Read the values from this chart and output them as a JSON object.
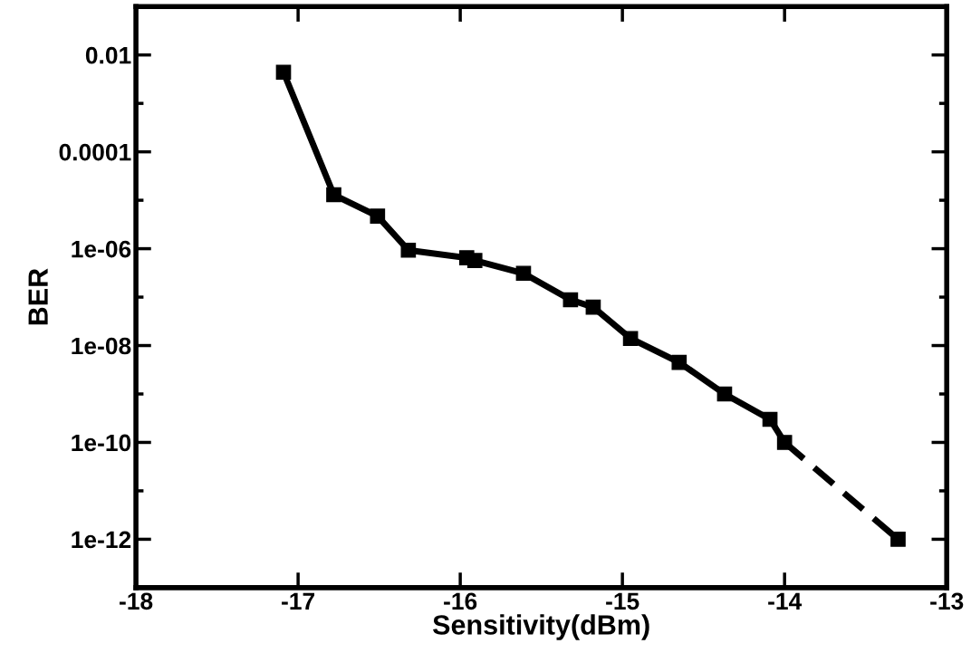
{
  "chart_data": {
    "type": "line",
    "xlabel": "Sensitivity(dBm)",
    "ylabel": "BER",
    "log": "y",
    "marker": "square",
    "grid": false,
    "legend": false,
    "xlim": [
      -18,
      -13
    ],
    "xticks": [
      -18,
      -17,
      -16,
      -15,
      -14,
      -13
    ],
    "ylim": [
      1e-13,
      0.1
    ],
    "yticks": [
      {
        "value": 0.01,
        "label": "0.01"
      },
      {
        "value": 0.0001,
        "label": "0.0001"
      },
      {
        "value": 1e-06,
        "label": "1e-06"
      },
      {
        "value": 1e-08,
        "label": "1e-08"
      },
      {
        "value": 1e-10,
        "label": "1e-10"
      },
      {
        "value": 1e-12,
        "label": "1e-12"
      }
    ],
    "series": [
      {
        "color": "#000000",
        "line_style": "solid",
        "x": [
          -17.09,
          -16.78,
          -16.51,
          -16.32,
          -15.96,
          -15.91,
          -15.61,
          -15.32,
          -15.18,
          -14.95,
          -14.65,
          -14.37,
          -14.09,
          -14.0
        ],
        "values": [
          0.0044,
          1.3e-05,
          4.7e-06,
          9.3e-07,
          6.5e-07,
          5.7e-07,
          3.1e-07,
          8.8e-08,
          6.2e-08,
          1.4e-08,
          4.5e-09,
          1e-09,
          3e-10,
          1e-10
        ]
      },
      {
        "color": "#000000",
        "line_style": "dashed",
        "x": [
          -14.0,
          -13.3
        ],
        "values": [
          1e-10,
          1e-12
        ]
      }
    ]
  }
}
